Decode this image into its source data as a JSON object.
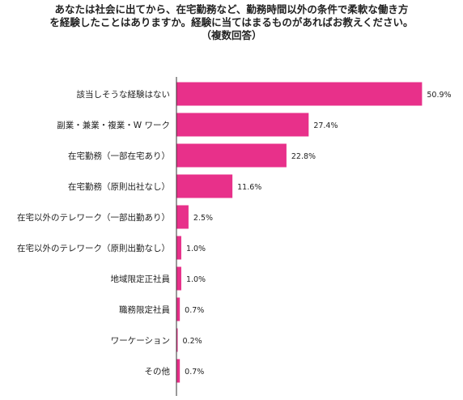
{
  "title_lines": [
    "あなたは社会に出てから、在宅勤務など、勤務時間以外の条件で柔軟な働き方",
    "を経験したことはありますか。経験に当てはまるものがあればお教えください。",
    "（複数回答）"
  ],
  "chart_data": {
    "type": "bar",
    "orientation": "horizontal",
    "title": "あなたは社会に出てから、在宅勤務など、勤務時間以外の条件で柔軟な働き方を経験したことはありますか。経験に当てはまるものがあればお教えください。（複数回答）",
    "categories": [
      "該当しそうな経験はない",
      "副業・兼業・複業・W ワーク",
      "在宅勤務（一部在宅あり）",
      "在宅勤務（原則出社なし）",
      "在宅以外のテレワーク（一部出勤あり）",
      "在宅以外のテレワーク（原則出勤なし）",
      "地域限定正社員",
      "職務限定社員",
      "ワーケーション",
      "その他"
    ],
    "values": [
      50.9,
      27.4,
      22.8,
      11.6,
      2.5,
      1.0,
      1.0,
      0.7,
      0.2,
      0.7
    ],
    "value_labels": [
      "50.9%",
      "27.4%",
      "22.8%",
      "11.6%",
      "2.5%",
      "1.0%",
      "1.0%",
      "0.7%",
      "0.2%",
      "0.7%"
    ],
    "unit": "%",
    "xlim": [
      0,
      51
    ],
    "grid": false,
    "bar_color": "#e8308a"
  }
}
